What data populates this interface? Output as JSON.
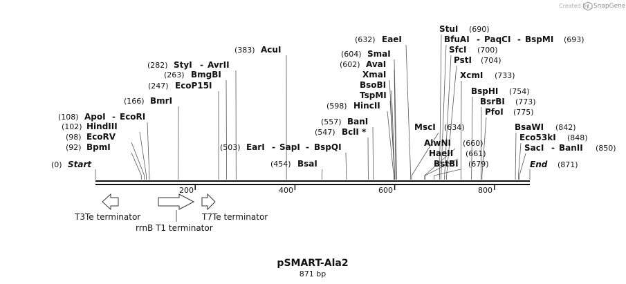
{
  "credit": {
    "prefix": "Created by",
    "brand": "SnapGene"
  },
  "plasmid": {
    "name": "pSMART-Ala2",
    "length_label": "871 bp",
    "length": 871
  },
  "ruler": {
    "ticks": [
      200,
      400,
      600,
      800
    ]
  },
  "ends": [
    {
      "name": "Start",
      "position": 0
    },
    {
      "name": "End",
      "position": 871
    }
  ],
  "enzymes": [
    {
      "names": [
        "BpmI"
      ],
      "position": 92
    },
    {
      "names": [
        "EcoRV"
      ],
      "position": 98
    },
    {
      "names": [
        "HindIII"
      ],
      "position": 102
    },
    {
      "names": [
        "ApoI",
        "EcoRI"
      ],
      "position": 108
    },
    {
      "names": [
        "BmrI"
      ],
      "position": 166
    },
    {
      "names": [
        "EcoP15I"
      ],
      "position": 247
    },
    {
      "names": [
        "BmgBI"
      ],
      "position": 263
    },
    {
      "names": [
        "StyI",
        "AvrII"
      ],
      "position": 282
    },
    {
      "names": [
        "AcuI"
      ],
      "position": 383
    },
    {
      "names": [
        "BsaI"
      ],
      "position": 454
    },
    {
      "names": [
        "EarI",
        "SapI",
        "BspQI"
      ],
      "position": 503
    },
    {
      "names": [
        "BclI *"
      ],
      "position": 547
    },
    {
      "names": [
        "BanI"
      ],
      "position": 557
    },
    {
      "names": [
        "HincII"
      ],
      "position": 598
    },
    {
      "names": [
        "TspMI"
      ],
      "position": null
    },
    {
      "names": [
        "BsoBI"
      ],
      "position": null
    },
    {
      "names": [
        "XmaI"
      ],
      "position": null
    },
    {
      "names": [
        "AvaI"
      ],
      "position": 602
    },
    {
      "names": [
        "SmaI"
      ],
      "position": 604
    },
    {
      "names": [
        "EaeI"
      ],
      "position": 632
    },
    {
      "names": [
        "MscI"
      ],
      "position": 634
    },
    {
      "names": [
        "AlwNI"
      ],
      "position": 660
    },
    {
      "names": [
        "HaeII"
      ],
      "position": 661
    },
    {
      "names": [
        "BstBI"
      ],
      "position": 679
    },
    {
      "names": [
        "StuI"
      ],
      "position": 690
    },
    {
      "names": [
        "BfuAI",
        "PaqCI",
        "BspMI"
      ],
      "position": 693
    },
    {
      "names": [
        "SfcI"
      ],
      "position": 700
    },
    {
      "names": [
        "PstI"
      ],
      "position": 704
    },
    {
      "names": [
        "XcmI"
      ],
      "position": 733
    },
    {
      "names": [
        "BspHI"
      ],
      "position": 754
    },
    {
      "names": [
        "BsrBI"
      ],
      "position": 773
    },
    {
      "names": [
        "PfoI"
      ],
      "position": 775
    },
    {
      "names": [
        "BsaWI"
      ],
      "position": 842
    },
    {
      "names": [
        "Eco53kI"
      ],
      "position": 848
    },
    {
      "names": [
        "SacI",
        "BanII"
      ],
      "position": 850
    }
  ],
  "features": [
    {
      "name": "T3Te terminator",
      "direction": "reverse",
      "start": 13,
      "end": 45
    },
    {
      "name": "rrnB T1 terminator",
      "direction": "forward",
      "start": 127,
      "end": 197
    },
    {
      "name": "T7Te terminator",
      "direction": "forward",
      "start": 212,
      "end": 240
    }
  ]
}
